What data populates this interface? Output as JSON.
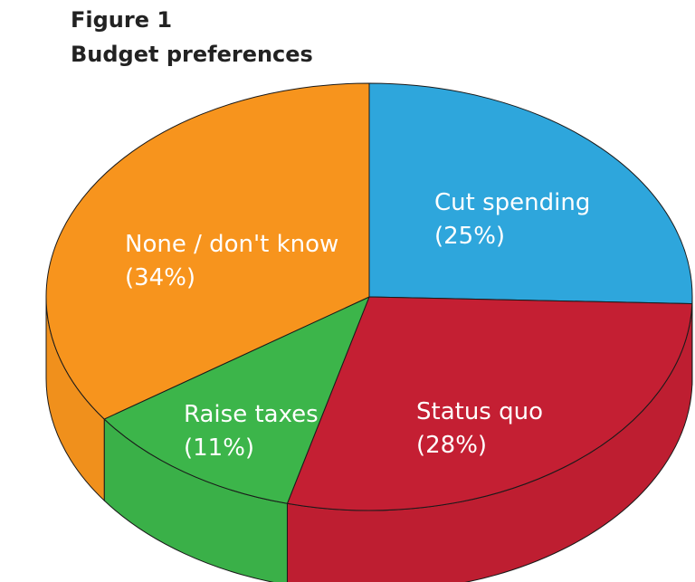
{
  "figure": {
    "number": "Figure 1",
    "title": "Budget preferences"
  },
  "chart_data": {
    "type": "pie",
    "style": "3d",
    "title": "Budget preferences",
    "slices": [
      {
        "label": "Cut spending",
        "percent_label": "(25%)",
        "value": 25,
        "color": "#2ea6dc"
      },
      {
        "label": "Status quo",
        "percent_label": "(28%)",
        "value": 28,
        "color": "#c41f33"
      },
      {
        "label": "Raise taxes",
        "percent_label": "(11%)",
        "value": 11,
        "color": "#3cb54a"
      },
      {
        "label": "None / don't know",
        "percent_label": "(34%)",
        "value": 34,
        "color": "#f7941d"
      }
    ]
  }
}
